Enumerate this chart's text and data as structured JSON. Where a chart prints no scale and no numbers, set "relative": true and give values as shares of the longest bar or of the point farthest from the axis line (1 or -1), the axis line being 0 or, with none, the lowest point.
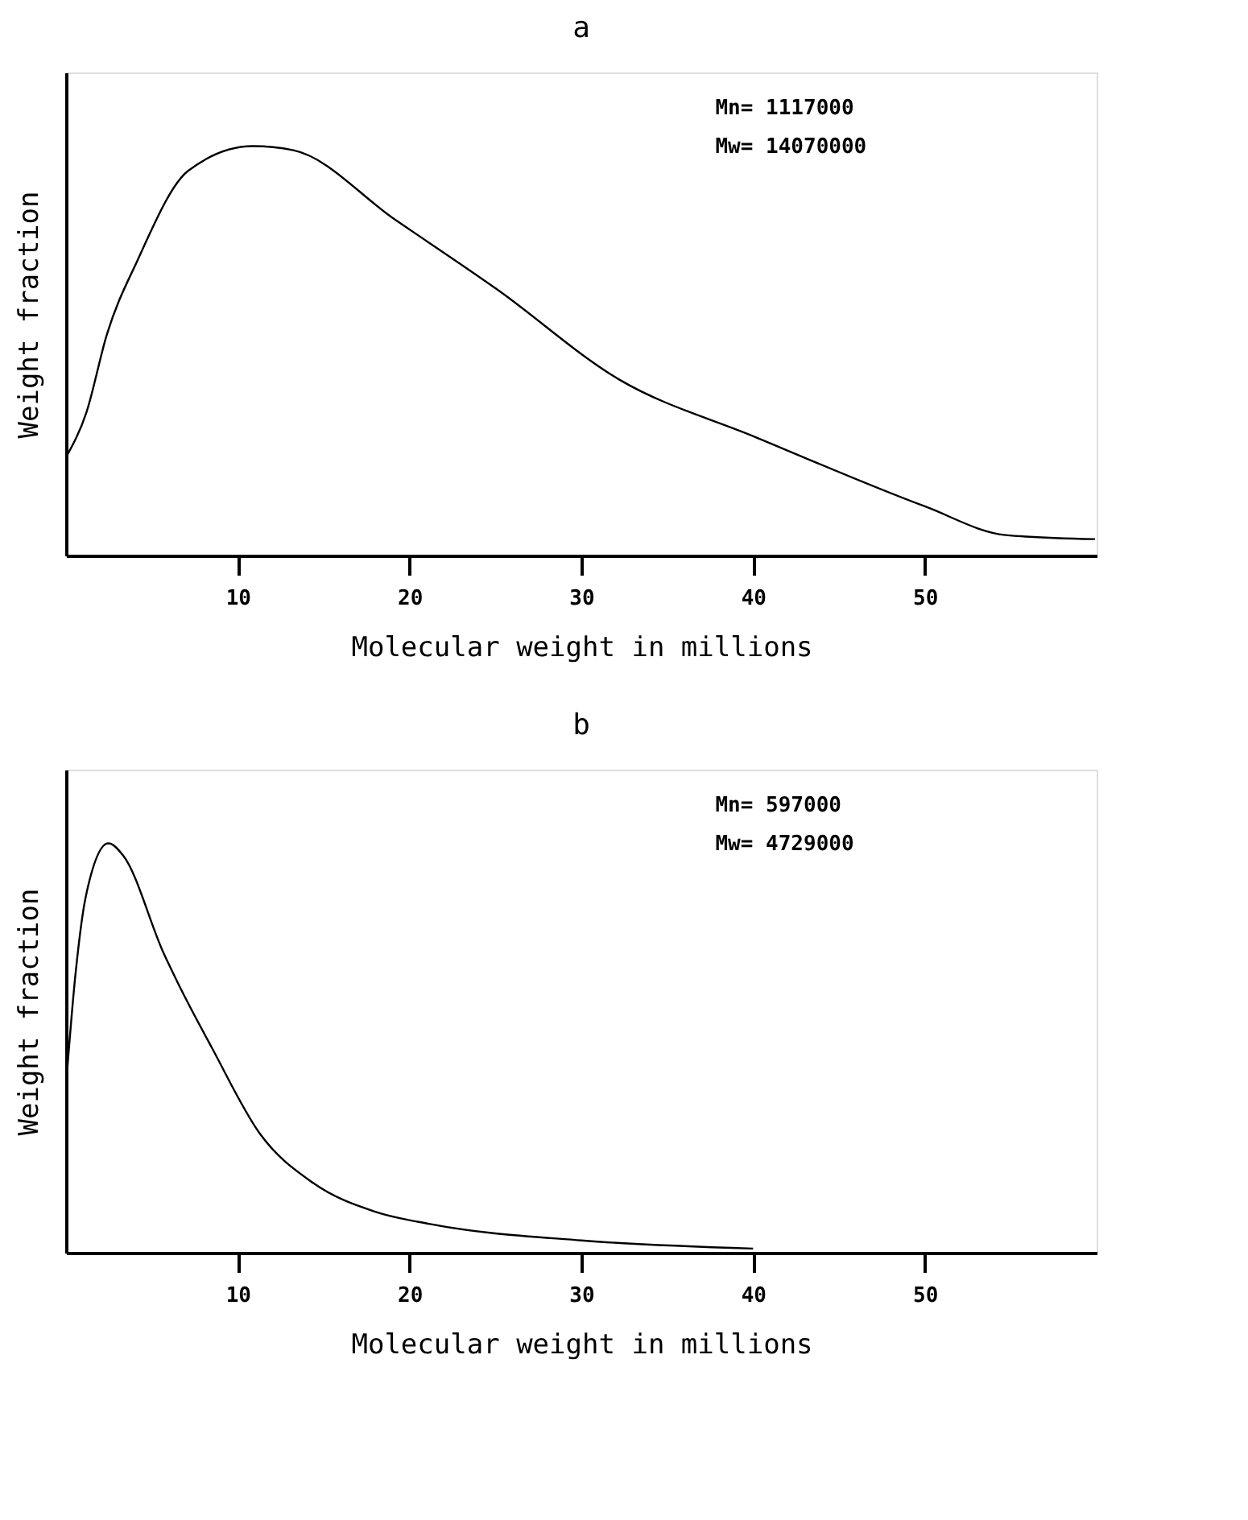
{
  "chart_data": [
    {
      "type": "line",
      "title": "a",
      "xlabel": "Molecular weight in millions",
      "ylabel": "Weight fraction",
      "relative": true,
      "tick_labels": "x",
      "grid": false,
      "marker": "none",
      "line_style": "solid",
      "xlim": [
        0,
        60
      ],
      "xticks": [
        10,
        20,
        30,
        40,
        50
      ],
      "annotations": [
        "Mn=  1117000",
        "Mw= 14070000"
      ],
      "series": [
        {
          "color": "#000000",
          "x": [
            0.0,
            1.19,
            2.38,
            4.15,
            7.12,
            10.87,
            13.24,
            19.17,
            25.1,
            32.2,
            40.1,
            50.0,
            54.7,
            59.9
          ],
          "values": [
            0.24,
            0.35,
            0.54,
            0.72,
            0.94,
            1.0,
            0.99,
            0.82,
            0.65,
            0.43,
            0.29,
            0.12,
            0.05,
            0.04
          ]
        }
      ]
    },
    {
      "type": "line",
      "title": "b",
      "xlabel": "Molecular weight in millions",
      "ylabel": "Weight fraction",
      "relative": true,
      "tick_labels": "x",
      "grid": false,
      "marker": "none",
      "line_style": "solid",
      "xlim": [
        0,
        60
      ],
      "xticks": [
        10,
        20,
        30,
        40,
        50
      ],
      "annotations": [
        "Mn=   597000",
        "Mw=  4729000"
      ],
      "series": [
        {
          "color": "#000000",
          "x": [
            0.0,
            0.55,
            1.15,
            2.46,
            3.33,
            5.7,
            6.5,
            8.5,
            11.3,
            14.4,
            18.0,
            21.2,
            30.0,
            40.0
          ],
          "values": [
            0.41,
            0.68,
            0.87,
            1.0,
            0.97,
            0.73,
            0.66,
            0.5,
            0.29,
            0.17,
            0.1,
            0.07,
            0.03,
            0.01
          ]
        }
      ]
    }
  ]
}
